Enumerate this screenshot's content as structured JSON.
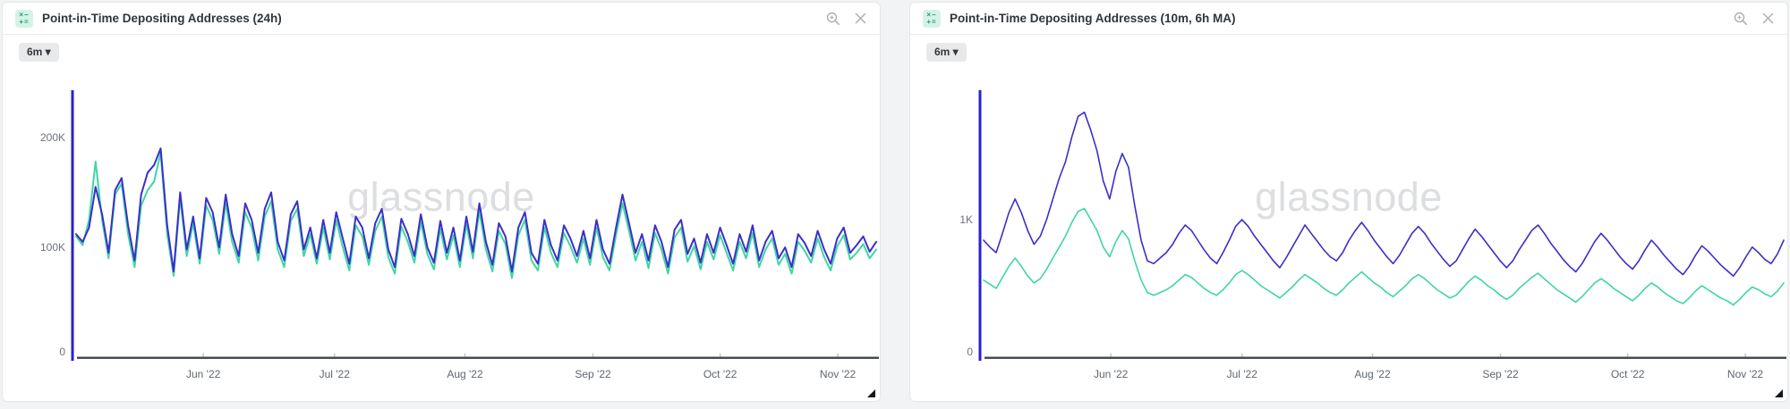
{
  "watermark": "glassnode",
  "colors": {
    "series_blue": "#3b2fc9",
    "series_green": "#3fd6a4",
    "y_axis_line": "#2a1fd4",
    "x_axis_line": "#3e464e",
    "metric_icon_bg": "#d6f2e6",
    "metric_icon_glyph": "#0e9f7b"
  },
  "panels": [
    {
      "title": "Point-in-Time Depositing Addresses (24h)",
      "timeframe": "6m ▾",
      "metric_icon_rows": [
        "×−",
        "+="
      ],
      "header_icons": [
        "zoom-in-icon",
        "close-icon"
      ]
    },
    {
      "title": "Point-in-Time Depositing Addresses (10m, 6h MA)",
      "timeframe": "6m ▾",
      "metric_icon_rows": [
        "×−",
        "+="
      ],
      "header_icons": [
        "zoom-in-icon",
        "close-icon"
      ]
    }
  ],
  "chart_data": [
    {
      "type": "line",
      "title": "Point-in-Time Depositing Addresses (24h)",
      "xlabel": "",
      "ylabel": "",
      "grid": false,
      "legend": "none",
      "values_unit": "thousand addresses",
      "ylim": [
        0,
        243
      ],
      "yticks": [
        {
          "value": 0,
          "label": "0"
        },
        {
          "value": 100,
          "label": "100K"
        },
        {
          "value": 200,
          "label": "200K"
        }
      ],
      "xticks": [
        {
          "label": "Jun '22",
          "f": 0.159
        },
        {
          "label": "Jul '22",
          "f": 0.323
        },
        {
          "label": "Aug '22",
          "f": 0.486
        },
        {
          "label": "Sep '22",
          "f": 0.646
        },
        {
          "label": "Oct '22",
          "f": 0.805
        },
        {
          "label": "Nov '22",
          "f": 0.952
        }
      ],
      "series": [
        {
          "name": "depositing-addresses-total",
          "color": "#3b2fc9",
          "values": [
            112,
            105,
            118,
            155,
            130,
            95,
            152,
            163,
            120,
            88,
            148,
            168,
            175,
            190,
            120,
            78,
            150,
            98,
            128,
            90,
            145,
            132,
            100,
            148,
            112,
            92,
            140,
            125,
            95,
            135,
            150,
            105,
            88,
            130,
            142,
            98,
            118,
            90,
            125,
            95,
            132,
            108,
            85,
            128,
            118,
            90,
            122,
            135,
            98,
            82,
            126,
            112,
            92,
            130,
            100,
            86,
            124,
            95,
            118,
            88,
            128,
            96,
            140,
            105,
            84,
            122,
            110,
            78,
            118,
            132,
            95,
            85,
            125,
            102,
            88,
            120,
            108,
            92,
            115,
            90,
            125,
            98,
            85,
            118,
            148,
            122,
            95,
            112,
            88,
            120,
            105,
            82,
            116,
            125,
            94,
            108,
            86,
            112,
            95,
            118,
            102,
            85,
            112,
            96,
            120,
            88,
            105,
            115,
            90,
            100,
            82,
            112,
            104,
            92,
            115,
            98,
            85,
            108,
            118,
            95,
            102,
            110,
            96,
            105
          ]
        },
        {
          "name": "depositing-addresses-secondary",
          "color": "#3fd6a4",
          "values": [
            110,
            102,
            125,
            178,
            125,
            90,
            148,
            158,
            112,
            82,
            138,
            152,
            160,
            186,
            112,
            74,
            145,
            92,
            122,
            85,
            138,
            125,
            94,
            140,
            105,
            86,
            132,
            118,
            88,
            128,
            142,
            98,
            82,
            124,
            135,
            92,
            112,
            85,
            118,
            89,
            125,
            100,
            79,
            120,
            110,
            84,
            115,
            128,
            91,
            76,
            119,
            105,
            86,
            123,
            94,
            80,
            117,
            89,
            111,
            82,
            121,
            90,
            133,
            98,
            78,
            115,
            103,
            72,
            111,
            125,
            88,
            79,
            118,
            95,
            82,
            113,
            101,
            86,
            108,
            84,
            118,
            91,
            79,
            111,
            140,
            115,
            88,
            105,
            81,
            113,
            98,
            76,
            109,
            118,
            87,
            101,
            80,
            105,
            89,
            111,
            95,
            79,
            105,
            90,
            113,
            82,
            98,
            108,
            84,
            94,
            76,
            105,
            97,
            86,
            108,
            91,
            79,
            101,
            111,
            89,
            95,
            103,
            90,
            98
          ]
        }
      ]
    },
    {
      "type": "line",
      "title": "Point-in-Time Depositing Addresses (10m, 6h MA)",
      "xlabel": "",
      "ylabel": "",
      "grid": false,
      "legend": "none",
      "values_unit": "addresses",
      "ylim": [
        0,
        1940
      ],
      "yticks": [
        {
          "value": 0,
          "label": "0"
        },
        {
          "value": 1000,
          "label": "1K"
        }
      ],
      "xticks": [
        {
          "label": "Jun '22",
          "f": 0.159
        },
        {
          "label": "Jul '22",
          "f": 0.323
        },
        {
          "label": "Aug '22",
          "f": 0.486
        },
        {
          "label": "Sep '22",
          "f": 0.646
        },
        {
          "label": "Oct '22",
          "f": 0.805
        },
        {
          "label": "Nov '22",
          "f": 0.952
        }
      ],
      "series": [
        {
          "name": "depositing-addresses-total",
          "color": "#3b2fc9",
          "values": [
            850,
            800,
            760,
            900,
            1050,
            1150,
            1050,
            920,
            820,
            880,
            1000,
            1150,
            1300,
            1420,
            1600,
            1750,
            1780,
            1650,
            1500,
            1280,
            1150,
            1350,
            1480,
            1380,
            1100,
            850,
            700,
            680,
            720,
            760,
            820,
            900,
            960,
            920,
            850,
            780,
            720,
            680,
            760,
            850,
            950,
            1000,
            950,
            880,
            820,
            760,
            700,
            650,
            720,
            800,
            880,
            960,
            900,
            840,
            780,
            730,
            700,
            760,
            850,
            920,
            980,
            920,
            850,
            790,
            730,
            680,
            740,
            820,
            900,
            950,
            900,
            830,
            770,
            710,
            660,
            700,
            780,
            860,
            930,
            880,
            820,
            760,
            700,
            650,
            700,
            780,
            850,
            920,
            960,
            900,
            830,
            770,
            710,
            660,
            620,
            680,
            760,
            840,
            900,
            850,
            790,
            730,
            680,
            640,
            700,
            780,
            850,
            800,
            740,
            690,
            640,
            600,
            660,
            740,
            810,
            770,
            720,
            670,
            630,
            590,
            650,
            730,
            800,
            760,
            710,
            680,
            750,
            850
          ]
        },
        {
          "name": "depositing-addresses-secondary",
          "color": "#3fd6a4",
          "values": [
            560,
            530,
            500,
            580,
            660,
            720,
            660,
            590,
            540,
            570,
            640,
            720,
            800,
            880,
            980,
            1060,
            1080,
            1000,
            920,
            800,
            730,
            840,
            920,
            860,
            700,
            560,
            470,
            450,
            470,
            490,
            520,
            560,
            600,
            580,
            540,
            500,
            470,
            450,
            490,
            540,
            600,
            630,
            600,
            560,
            520,
            490,
            460,
            430,
            470,
            510,
            560,
            600,
            570,
            540,
            500,
            470,
            450,
            490,
            540,
            580,
            620,
            580,
            540,
            510,
            470,
            440,
            480,
            520,
            570,
            600,
            570,
            530,
            490,
            460,
            430,
            450,
            500,
            550,
            590,
            560,
            520,
            490,
            450,
            420,
            450,
            500,
            540,
            580,
            610,
            570,
            530,
            490,
            460,
            430,
            400,
            440,
            490,
            540,
            570,
            540,
            500,
            470,
            440,
            410,
            450,
            500,
            540,
            510,
            470,
            440,
            410,
            390,
            430,
            480,
            520,
            490,
            460,
            430,
            410,
            380,
            420,
            470,
            510,
            490,
            460,
            440,
            480,
            540
          ]
        }
      ]
    }
  ]
}
